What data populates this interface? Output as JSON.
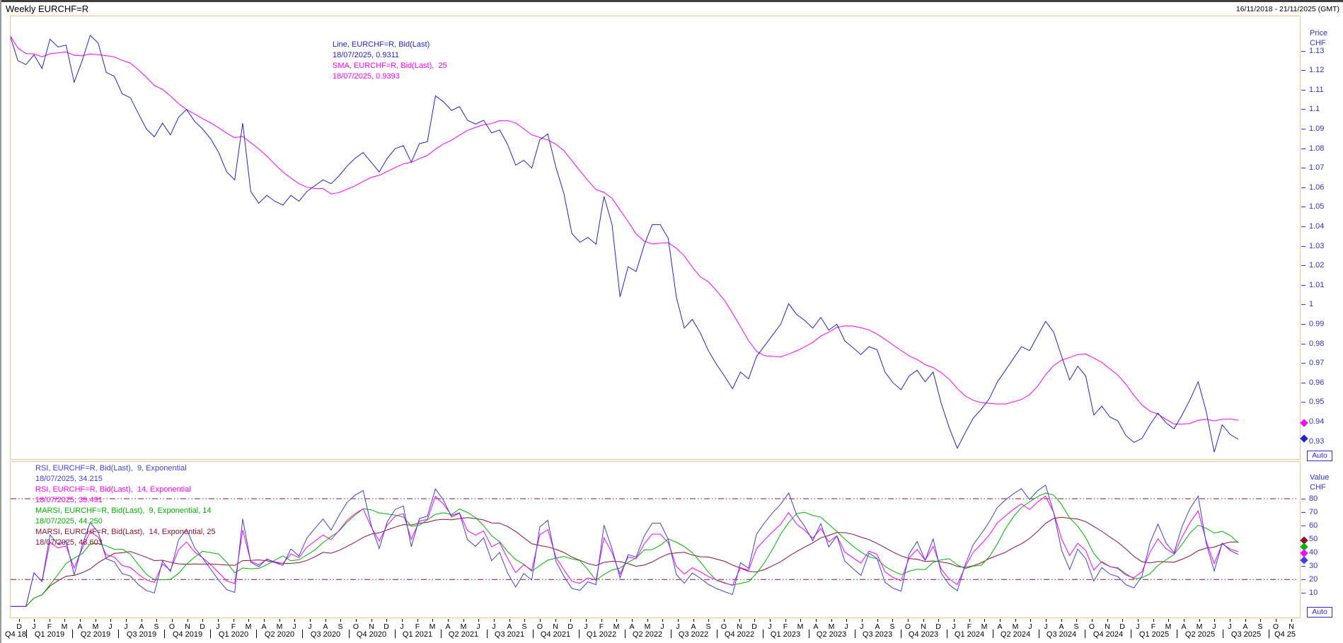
{
  "window": {
    "title": "Weekly EURCHF=R",
    "date_range": "16/11/2018 - 21/11/2025 (GMT)"
  },
  "misc": {
    "auto_label": "Auto"
  },
  "colors": {
    "price_line": "#2323cf",
    "sma_line": "#ff00ff",
    "rsi9": "#4040e0",
    "rsi14": "#ff00ff",
    "marsi9": "#00b400",
    "marsi14": "#8e1230",
    "axis_text": "#3333cc",
    "frame": "#f2c38e",
    "auto_button": "#2b2bd6",
    "time_text": "#000000"
  },
  "price_panel": {
    "axis_title_line1": "Price",
    "axis_title_line2": "CHF",
    "tick_labels": [
      "1.13",
      "1.12",
      "1.11",
      "1.1",
      "1.09",
      "1.08",
      "1.07",
      "1.06",
      "1.05",
      "1.04",
      "1.03",
      "1.02",
      "1.01",
      "1",
      "0.99",
      "0.98",
      "0.97",
      "0.96",
      "0.95",
      "0.94",
      "0.93"
    ],
    "legend": [
      {
        "text": "Line, EURCHF=R, Bid(Last)",
        "color_key": "price_line"
      },
      {
        "text": "18/07/2025, 0.9311",
        "color_key": "price_line"
      },
      {
        "text": "SMA, EURCHF=R, Bid(Last),  25",
        "color_key": "sma_line"
      },
      {
        "text": "18/07/2025, 0.9393",
        "color_key": "sma_line"
      }
    ],
    "markers": [
      {
        "value": 0.9393,
        "color_key": "sma_line"
      },
      {
        "value": 0.9311,
        "color_key": "price_line"
      }
    ]
  },
  "rsi_panel": {
    "axis_title_line1": "Value",
    "axis_title_line2": "CHF",
    "tick_labels": [
      "80",
      "70",
      "60",
      "50",
      "40",
      "30",
      "20",
      "10"
    ],
    "legend": [
      {
        "text": "RSI, EURCHF=R, Bid(Last),  9, Exponential",
        "color_key": "rsi9"
      },
      {
        "text": "18/07/2025, 34.215",
        "color_key": "rsi9"
      },
      {
        "text": "RSI, EURCHF=R, Bid(Last),  14, Exponential",
        "color_key": "rsi14"
      },
      {
        "text": "18/07/2025, 39.491",
        "color_key": "rsi14"
      },
      {
        "text": "MARSI, EURCHF=R, Bid(Last),  9, Exponential, 14",
        "color_key": "marsi9"
      },
      {
        "text": "18/07/2025, 44.250",
        "color_key": "marsi9"
      },
      {
        "text": "MARSI, EURCHF=R, Bid(Last),  14, Exponential, 25",
        "color_key": "marsi14"
      },
      {
        "text": "18/07/2025, 48.603",
        "color_key": "marsi14"
      }
    ],
    "markers": [
      {
        "value": 48.603,
        "color_key": "marsi14"
      },
      {
        "value": 44.25,
        "color_key": "marsi9"
      },
      {
        "value": 39.491,
        "color_key": "rsi14"
      },
      {
        "value": 34.215,
        "color_key": "rsi9"
      }
    ]
  },
  "time_axis": {
    "months": [
      "D",
      "J",
      "F",
      "M",
      "A",
      "M",
      "J",
      "J",
      "A",
      "S",
      "O",
      "N",
      "D",
      "J",
      "F",
      "M",
      "A",
      "M",
      "J",
      "J",
      "A",
      "S",
      "O",
      "N",
      "D",
      "J",
      "F",
      "M",
      "A",
      "M",
      "J",
      "J",
      "A",
      "S",
      "O",
      "N",
      "D",
      "J",
      "F",
      "M",
      "A",
      "M",
      "J",
      "J",
      "A",
      "S",
      "O",
      "N",
      "D",
      "J",
      "F",
      "M",
      "A",
      "M",
      "J",
      "J",
      "A",
      "S",
      "O",
      "N",
      "D",
      "J",
      "F",
      "M",
      "A",
      "M",
      "J",
      "J",
      "A",
      "S",
      "O",
      "N",
      "D",
      "J",
      "F",
      "M",
      "A",
      "M",
      "J",
      "J",
      "A",
      "S",
      "O",
      "N"
    ],
    "quarters": [
      "Q4 18",
      "Q1 2019",
      "Q2 2019",
      "Q3 2019",
      "Q4 2019",
      "Q1 2020",
      "Q2 2020",
      "Q3 2020",
      "Q4 2020",
      "Q1 2021",
      "Q2 2021",
      "Q3 2021",
      "Q4 2021",
      "Q1 2022",
      "Q2 2022",
      "Q3 2022",
      "Q4 2022",
      "Q1 2023",
      "Q2 2023",
      "Q3 2023",
      "Q4 2023",
      "Q1 2024",
      "Q2 2024",
      "Q3 2024",
      "Q4 2024",
      "Q1 2025",
      "Q2 2025",
      "Q3 2025",
      "Q4 25"
    ]
  },
  "chart_data": [
    {
      "type": "line",
      "title": "Weekly EURCHF=R",
      "x_start": "16/11/2018",
      "x_data_end": "18/07/2025",
      "x_axis_end": "21/11/2025",
      "ylabel": "Price CHF",
      "ylim": [
        0.92,
        1.148
      ],
      "yticks": [
        1.13,
        1.12,
        1.11,
        1.1,
        1.09,
        1.08,
        1.07,
        1.06,
        1.05,
        1.04,
        1.03,
        1.02,
        1.01,
        1.0,
        0.99,
        0.98,
        0.97,
        0.96,
        0.95,
        0.94,
        0.93
      ],
      "grid": false,
      "legend_position": "top-left-inside",
      "series": [
        {
          "name": "Line, EURCHF=R, Bid(Last)",
          "color_key": "price_line",
          "last_value": 0.9311,
          "last_date": "18/07/2025",
          "values": [
            1.138,
            1.125,
            1.123,
            1.128,
            1.121,
            1.136,
            1.132,
            1.133,
            1.114,
            1.125,
            1.138,
            1.134,
            1.119,
            1.117,
            1.108,
            1.106,
            1.098,
            1.09,
            1.086,
            1.093,
            1.087,
            1.096,
            1.1,
            1.094,
            1.09,
            1.085,
            1.078,
            1.068,
            1.064,
            1.093,
            1.058,
            1.052,
            1.056,
            1.053,
            1.051,
            1.056,
            1.053,
            1.058,
            1.061,
            1.064,
            1.062,
            1.066,
            1.071,
            1.075,
            1.078,
            1.073,
            1.068,
            1.075,
            1.08,
            1.0815,
            1.073,
            1.0825,
            1.0835,
            1.107,
            1.104,
            1.0995,
            1.1015,
            1.0945,
            1.0925,
            1.0945,
            1.088,
            1.0895,
            1.082,
            1.0715,
            1.074,
            1.07,
            1.0845,
            1.0875,
            1.0705,
            1.057,
            1.0365,
            1.032,
            1.0345,
            1.031,
            1.0555,
            1.041,
            1.004,
            1.0195,
            1.017,
            1.0305,
            1.041,
            1.041,
            1.034,
            1.004,
            0.988,
            0.9925,
            0.9855,
            0.9765,
            0.9695,
            0.9635,
            0.957,
            0.9655,
            0.962,
            0.9735,
            0.979,
            0.9845,
            0.99,
            1.0005,
            0.995,
            0.992,
            0.988,
            0.9935,
            0.987,
            0.99,
            0.9815,
            0.978,
            0.9745,
            0.9785,
            0.977,
            0.9655,
            0.96,
            0.9565,
            0.9635,
            0.9665,
            0.9605,
            0.9655,
            0.9495,
            0.937,
            0.9265,
            0.9345,
            0.942,
            0.9465,
            0.952,
            0.9605,
            0.9665,
            0.9725,
            0.9785,
            0.9765,
            0.984,
            0.9915,
            0.986,
            0.9735,
            0.9615,
            0.9685,
            0.9635,
            0.9435,
            0.948,
            0.9425,
            0.9405,
            0.933,
            0.9295,
            0.9315,
            0.9385,
            0.9445,
            0.9395,
            0.9365,
            0.9435,
            0.9515,
            0.9605,
            0.9455,
            0.9245,
            0.9385,
            0.9335,
            0.9311
          ]
        },
        {
          "name": "SMA, EURCHF=R, Bid(Last),  25",
          "color_key": "sma_line",
          "last_value": 0.9393,
          "last_date": "18/07/2025",
          "derivation": "simple moving average of the Line series, 25 weeks (11 samples)",
          "window_samples": 11
        }
      ]
    },
    {
      "type": "line",
      "indicator": "RSI",
      "ylabel": "Value CHF",
      "ylim": [
        0,
        100
      ],
      "yticks": [
        80,
        70,
        60,
        50,
        40,
        30,
        20,
        10
      ],
      "levels": [
        80,
        20
      ],
      "grid": false,
      "series": [
        {
          "name": "RSI, EURCHF=R, Bid(Last),  9, Exponential",
          "color_key": "rsi9",
          "last_value": 34.215,
          "derivation": "RSI of price series",
          "rsi_period_samples": 4
        },
        {
          "name": "RSI, EURCHF=R, Bid(Last),  14, Exponential",
          "color_key": "rsi14",
          "last_value": 39.491,
          "derivation": "RSI of price series",
          "rsi_period_samples": 6
        },
        {
          "name": "MARSI, EURCHF=R, Bid(Last),  9, Exponential, 14",
          "color_key": "marsi9",
          "last_value": 44.25,
          "derivation": "MA of RSI",
          "rsi_period_samples": 4,
          "ma_samples": 6
        },
        {
          "name": "MARSI, EURCHF=R, Bid(Last),  14, Exponential, 25",
          "color_key": "marsi14",
          "last_value": 48.603,
          "derivation": "MA of RSI",
          "rsi_period_samples": 6,
          "ma_samples": 11
        }
      ]
    }
  ]
}
